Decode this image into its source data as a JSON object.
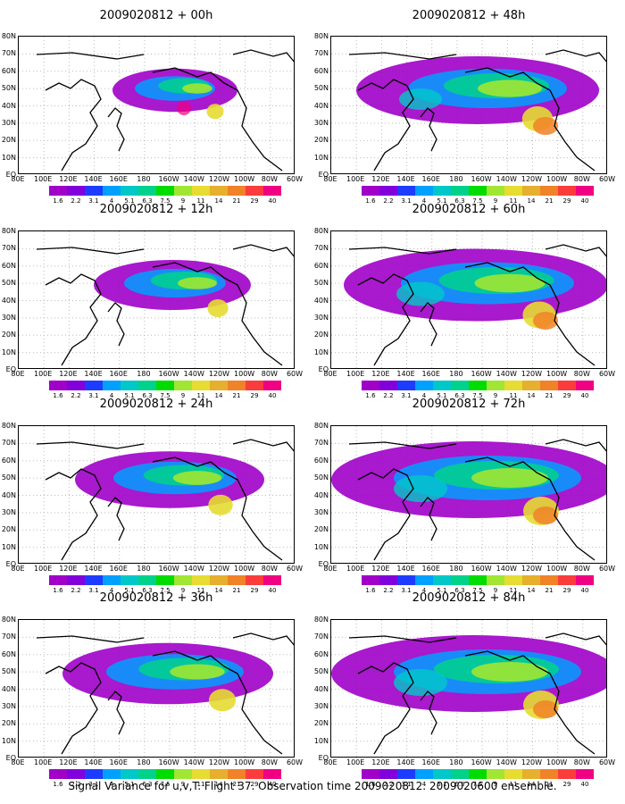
{
  "caption": "Signal Variance for u,v,T. Flight 37. Observation time 2009020812. 2009020600 ensemble.",
  "latitude_labels": [
    "80N",
    "70N",
    "60N",
    "50N",
    "40N",
    "30N",
    "20N",
    "10N",
    "EQ"
  ],
  "longitude_labels": [
    "80E",
    "100E",
    "120E",
    "140E",
    "160E",
    "180",
    "160W",
    "140W",
    "120W",
    "100W",
    "80W",
    "60W"
  ],
  "colorbar": {
    "labels": [
      "1.6",
      "2.2",
      "3.1",
      "4",
      "5.1",
      "6.3",
      "7.5",
      "9",
      "11",
      "14",
      "21",
      "29",
      "40"
    ],
    "colors": [
      "#a000c8",
      "#8200dc",
      "#1e3cff",
      "#00a0ff",
      "#00c8c8",
      "#00d28c",
      "#00dc00",
      "#a0e632",
      "#e6dc32",
      "#e6af2d",
      "#f08228",
      "#fa3c3c",
      "#f00082"
    ]
  },
  "panels": [
    {
      "title": "2009020812 + 00h"
    },
    {
      "title": "2009020812 + 48h"
    },
    {
      "title": "2009020812 + 12h"
    },
    {
      "title": "2009020812 + 60h"
    },
    {
      "title": "2009020812 + 24h"
    },
    {
      "title": "2009020812 + 72h"
    },
    {
      "title": "2009020812 + 36h"
    },
    {
      "title": "2009020812 + 84h"
    }
  ]
}
